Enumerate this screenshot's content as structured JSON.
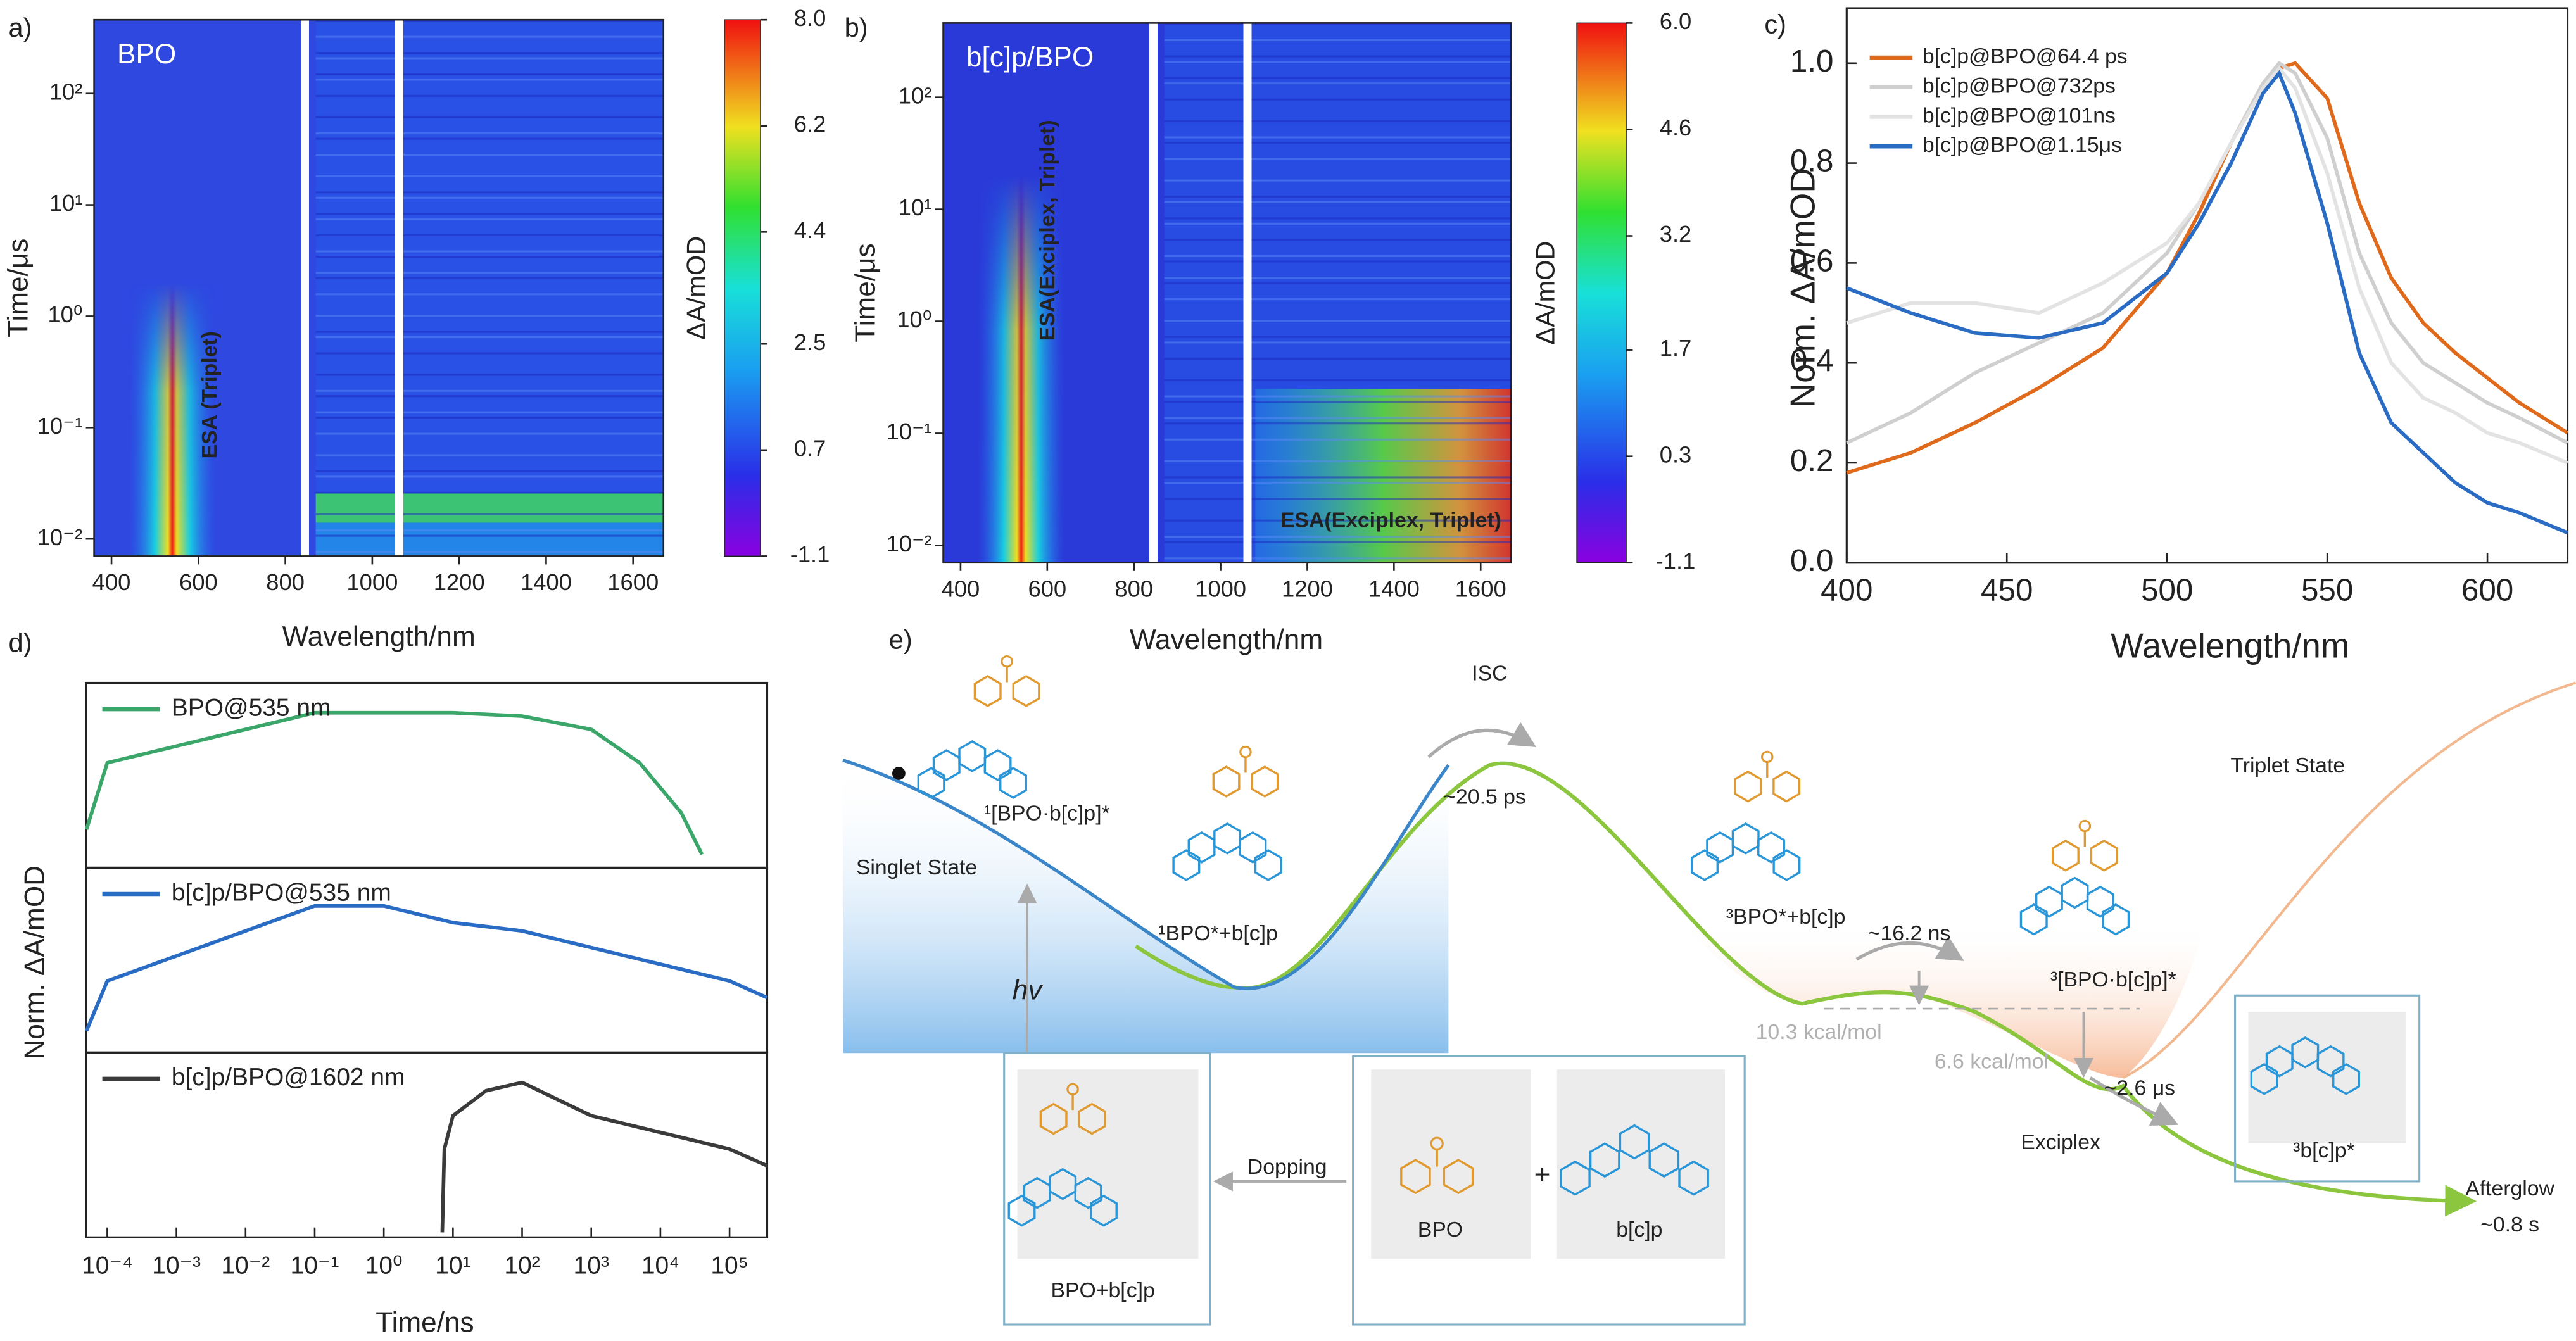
{
  "chart_data": [
    {
      "type": "heatmap",
      "panel_label": "a)",
      "inner_label": "BPO",
      "annotations": [
        "ESA (Triplet)"
      ],
      "x_label": "Wavelength/nm",
      "y_label": "Time/μs",
      "colorbar_label": "ΔA/mOD",
      "xlim": [
        360,
        1670
      ],
      "xticks": [
        400,
        600,
        800,
        1000,
        1200,
        1400,
        1600
      ],
      "ylim": [
        0.007,
        460
      ],
      "yscale": "log",
      "yticks": [
        {
          "value": 0.01,
          "label": "10⁻²"
        },
        {
          "value": 0.1,
          "label": "10⁻¹"
        },
        {
          "value": 1,
          "label": "10⁰"
        },
        {
          "value": 10,
          "label": "10¹"
        },
        {
          "value": 100,
          "label": "10²"
        }
      ],
      "clim": [
        -1.1,
        8.0
      ],
      "cticks": [
        {
          "value": 8.0,
          "label": "8.0"
        },
        6.2,
        4.4,
        2.5,
        0.7,
        -1.1
      ]
    },
    {
      "type": "heatmap",
      "panel_label": "b)",
      "inner_label": "b[c]p/BPO",
      "annotations": [
        "ESA(Exciplex, Triplet)",
        "ESA(Exciplex, Triplet)"
      ],
      "x_label": "Wavelength/nm",
      "y_label": "Time/μs",
      "colorbar_label": "ΔA/mOD",
      "xlim": [
        360,
        1670
      ],
      "xticks": [
        400,
        600,
        800,
        1000,
        1200,
        1400,
        1600
      ],
      "ylim": [
        0.007,
        460
      ],
      "yscale": "log",
      "yticks": [
        {
          "value": 0.01,
          "label": "10⁻²"
        },
        {
          "value": 0.1,
          "label": "10⁻¹"
        },
        {
          "value": 1,
          "label": "10⁰"
        },
        {
          "value": 10,
          "label": "10¹"
        },
        {
          "value": 100,
          "label": "10²"
        }
      ],
      "clim": [
        -1.1,
        6.0
      ],
      "cticks": [
        {
          "value": 6.0,
          "label": "6.0"
        },
        4.6,
        3.2,
        1.7,
        0.3,
        -1.1
      ]
    },
    {
      "type": "line",
      "panel_label": "c)",
      "x_label": "Wavelength/nm",
      "y_label": "Norm. ΔA/mOD",
      "xlim": [
        400,
        625
      ],
      "xticks": [
        400,
        450,
        500,
        550,
        600
      ],
      "ylim": [
        0,
        1.11
      ],
      "yticks": [
        {
          "value": 0,
          "label": "0.0"
        },
        0.2,
        0.4,
        0.6,
        0.8,
        {
          "value": 1,
          "label": "1.0"
        }
      ],
      "x": [
        400,
        420,
        440,
        460,
        480,
        500,
        510,
        520,
        530,
        535,
        540,
        550,
        560,
        570,
        580,
        590,
        600,
        610,
        625
      ],
      "series": [
        {
          "name": "b[c]p@BPO@64.4 ps",
          "color": "#e06a1c",
          "values": [
            0.18,
            0.22,
            0.28,
            0.35,
            0.43,
            0.58,
            0.7,
            0.84,
            0.96,
            0.99,
            1.0,
            0.93,
            0.72,
            0.57,
            0.48,
            0.42,
            0.37,
            0.32,
            0.26
          ]
        },
        {
          "name": "b[c]p@BPO@732ps",
          "color": "#cfcfcf",
          "values": [
            0.24,
            0.3,
            0.38,
            0.44,
            0.5,
            0.62,
            0.72,
            0.84,
            0.96,
            1.0,
            0.98,
            0.85,
            0.62,
            0.48,
            0.4,
            0.36,
            0.32,
            0.29,
            0.24
          ]
        },
        {
          "name": "b[c]p@BPO@101ns",
          "color": "#e3e3e3",
          "values": [
            0.48,
            0.52,
            0.52,
            0.5,
            0.56,
            0.64,
            0.72,
            0.84,
            0.95,
            0.99,
            0.95,
            0.78,
            0.55,
            0.4,
            0.33,
            0.3,
            0.26,
            0.24,
            0.2
          ]
        },
        {
          "name": "b[c]p@BPO@1.15μs",
          "color": "#2a6cc4",
          "values": [
            0.55,
            0.5,
            0.46,
            0.45,
            0.48,
            0.58,
            0.68,
            0.8,
            0.94,
            0.98,
            0.9,
            0.68,
            0.42,
            0.28,
            0.22,
            0.16,
            0.12,
            0.1,
            0.06
          ]
        }
      ]
    },
    {
      "type": "line",
      "panel_label": "d)",
      "layout": "stacked",
      "x_label": "Time/ns",
      "y_label": "Norm. ΔA/mOD",
      "xscale": "log",
      "xlim": [
        4.9e-05,
        350000
      ],
      "xticks": [
        {
          "value": 0.0001,
          "label": "10⁻⁴"
        },
        {
          "value": 0.001,
          "label": "10⁻³"
        },
        {
          "value": 0.01,
          "label": "10⁻²"
        },
        {
          "value": 0.1,
          "label": "10⁻¹"
        },
        {
          "value": 1,
          "label": "10⁰"
        },
        {
          "value": 10,
          "label": "10¹"
        },
        {
          "value": 100,
          "label": "10²"
        },
        {
          "value": 1000,
          "label": "10³"
        },
        {
          "value": 10000,
          "label": "10⁴"
        },
        {
          "value": 100000,
          "label": "10⁵"
        }
      ],
      "ylim": [
        0,
        1.05
      ],
      "series": [
        {
          "name": "BPO@535 nm",
          "color": "#3aa66a",
          "x": [
            5e-05,
            0.0001,
            0.001,
            0.01,
            0.1,
            1,
            10,
            100,
            1000,
            5000,
            20000,
            40000
          ],
          "values": [
            0.2,
            0.6,
            0.7,
            0.8,
            0.9,
            0.9,
            0.9,
            0.88,
            0.8,
            0.6,
            0.3,
            0.05
          ]
        },
        {
          "name": "b[c]p/BPO@535 nm",
          "color": "#2a6cc4",
          "x": [
            5e-05,
            0.0001,
            0.001,
            0.01,
            0.1,
            1,
            10,
            100,
            1000,
            10000,
            100000,
            350000
          ],
          "values": [
            0.1,
            0.4,
            0.55,
            0.7,
            0.85,
            0.85,
            0.75,
            0.7,
            0.6,
            0.5,
            0.4,
            0.3
          ]
        },
        {
          "name": "b[c]p/BPO@1602 nm",
          "color": "#3a3a3a",
          "x": [
            7,
            7.5,
            10,
            30,
            100,
            1000,
            10000,
            100000,
            350000
          ],
          "values": [
            0.0,
            0.5,
            0.7,
            0.85,
            0.9,
            0.7,
            0.6,
            0.5,
            0.4
          ]
        }
      ]
    }
  ],
  "diagram": {
    "panel_label": "e)",
    "labels": [
      "Singlet State",
      "¹[BPO·b[c]p]*",
      "¹BPO*+b[c]p",
      "ISC",
      "~20.5 ps",
      "³BPO*+b[c]p",
      "~16.2 ns",
      "10.3 kcal/mol",
      "6.6 kcal/mol",
      "³[BPO·b[c]p]*",
      "~2.6 μs",
      "Exciplex",
      "Triplet State",
      "³b[c]p*",
      "Afterglow",
      "~0.8 s",
      "hv",
      "Dopping",
      "BPO+b[c]p",
      "BPO",
      "+",
      "b[c]p"
    ]
  }
}
